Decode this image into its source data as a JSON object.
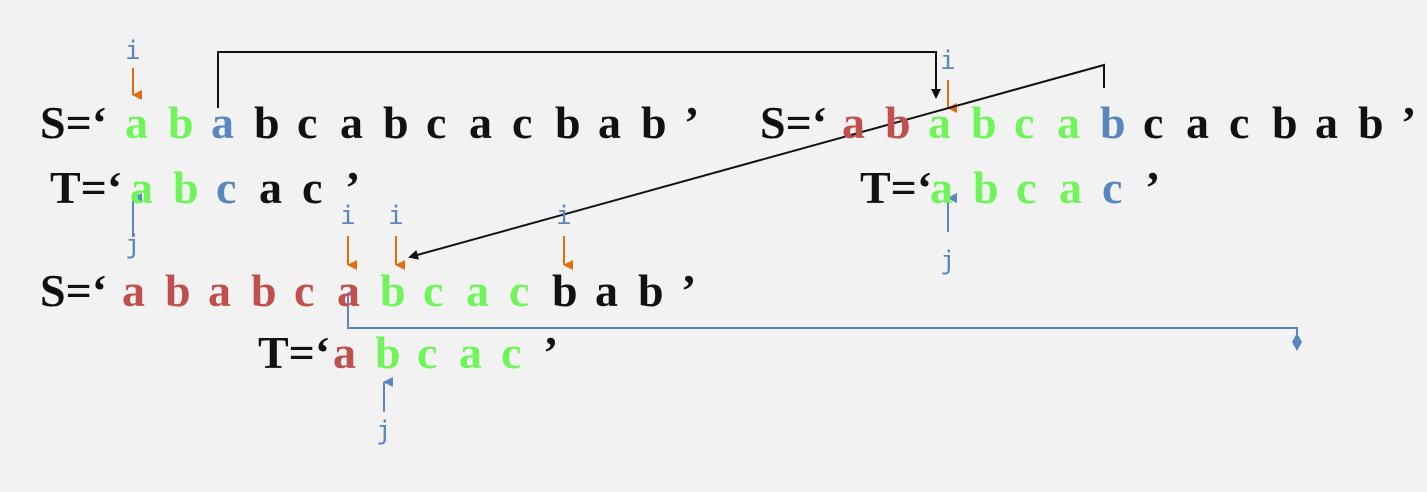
{
  "colors": {
    "black": "#111111",
    "matched": "#6ff45a",
    "mismatch": "#5a86c0",
    "skipped": "#c0504d",
    "i_marker": "#e46c0a",
    "j_marker": "#5a86c0",
    "connector": "#111111",
    "blue_connector": "#5a86c0"
  },
  "rows": [
    {
      "id": "row1-s",
      "parts": [
        {
          "t": "S=‘",
          "c": "black"
        },
        {
          "t": "a",
          "c": "matched"
        },
        {
          "t": "b",
          "c": "matched"
        },
        {
          "t": "a",
          "c": "mismatch"
        },
        {
          "t": "b",
          "c": "black"
        },
        {
          "t": "c",
          "c": "black"
        },
        {
          "t": "a",
          "c": "black"
        },
        {
          "t": "b",
          "c": "black"
        },
        {
          "t": "c",
          "c": "black"
        },
        {
          "t": "a",
          "c": "black"
        },
        {
          "t": "c",
          "c": "black"
        },
        {
          "t": "b",
          "c": "black"
        },
        {
          "t": "a",
          "c": "black"
        },
        {
          "t": "b",
          "c": "black"
        },
        {
          "t": "’",
          "c": "black"
        }
      ]
    },
    {
      "id": "row1-t",
      "parts": [
        {
          "t": "T=‘",
          "c": "black"
        },
        {
          "t": "a",
          "c": "matched"
        },
        {
          "t": "b",
          "c": "matched"
        },
        {
          "t": "c",
          "c": "mismatch"
        },
        {
          "t": "a",
          "c": "black"
        },
        {
          "t": "c",
          "c": "black"
        },
        {
          "t": "’",
          "c": "black"
        }
      ]
    },
    {
      "id": "row2-s",
      "parts": [
        {
          "t": "S=‘",
          "c": "black"
        },
        {
          "t": "a",
          "c": "skipped"
        },
        {
          "t": "b",
          "c": "skipped"
        },
        {
          "t": "a",
          "c": "matched"
        },
        {
          "t": "b",
          "c": "matched"
        },
        {
          "t": "c",
          "c": "matched"
        },
        {
          "t": "a",
          "c": "matched"
        },
        {
          "t": "b",
          "c": "mismatch"
        },
        {
          "t": "c",
          "c": "black"
        },
        {
          "t": "a",
          "c": "black"
        },
        {
          "t": "c",
          "c": "black"
        },
        {
          "t": "b",
          "c": "black"
        },
        {
          "t": "a",
          "c": "black"
        },
        {
          "t": "b",
          "c": "black"
        },
        {
          "t": "’",
          "c": "black"
        }
      ]
    },
    {
      "id": "row2-t",
      "parts": [
        {
          "t": "T=‘",
          "c": "black"
        },
        {
          "t": "a",
          "c": "matched"
        },
        {
          "t": "b",
          "c": "matched"
        },
        {
          "t": "c",
          "c": "matched"
        },
        {
          "t": "a",
          "c": "matched"
        },
        {
          "t": "c",
          "c": "mismatch"
        },
        {
          "t": "’",
          "c": "black"
        }
      ]
    },
    {
      "id": "row3-s",
      "parts": [
        {
          "t": "S=‘",
          "c": "black"
        },
        {
          "t": "a",
          "c": "skipped"
        },
        {
          "t": "b",
          "c": "skipped"
        },
        {
          "t": "a",
          "c": "skipped"
        },
        {
          "t": "b",
          "c": "skipped"
        },
        {
          "t": "c",
          "c": "skipped"
        },
        {
          "t": "a",
          "c": "skipped"
        },
        {
          "t": "b",
          "c": "matched"
        },
        {
          "t": "c",
          "c": "matched"
        },
        {
          "t": "a",
          "c": "matched"
        },
        {
          "t": "c",
          "c": "matched"
        },
        {
          "t": "b",
          "c": "black"
        },
        {
          "t": "a",
          "c": "black"
        },
        {
          "t": "b",
          "c": "black"
        },
        {
          "t": "’",
          "c": "black"
        }
      ]
    },
    {
      "id": "row3-t",
      "parts": [
        {
          "t": "T=‘",
          "c": "black"
        },
        {
          "t": "a",
          "c": "skipped"
        },
        {
          "t": "b",
          "c": "matched"
        },
        {
          "t": "c",
          "c": "matched"
        },
        {
          "t": "a",
          "c": "matched"
        },
        {
          "t": "c",
          "c": "matched"
        },
        {
          "t": "’",
          "c": "black"
        }
      ]
    }
  ],
  "pointers": {
    "i_label": "i",
    "j_label": "j"
  }
}
